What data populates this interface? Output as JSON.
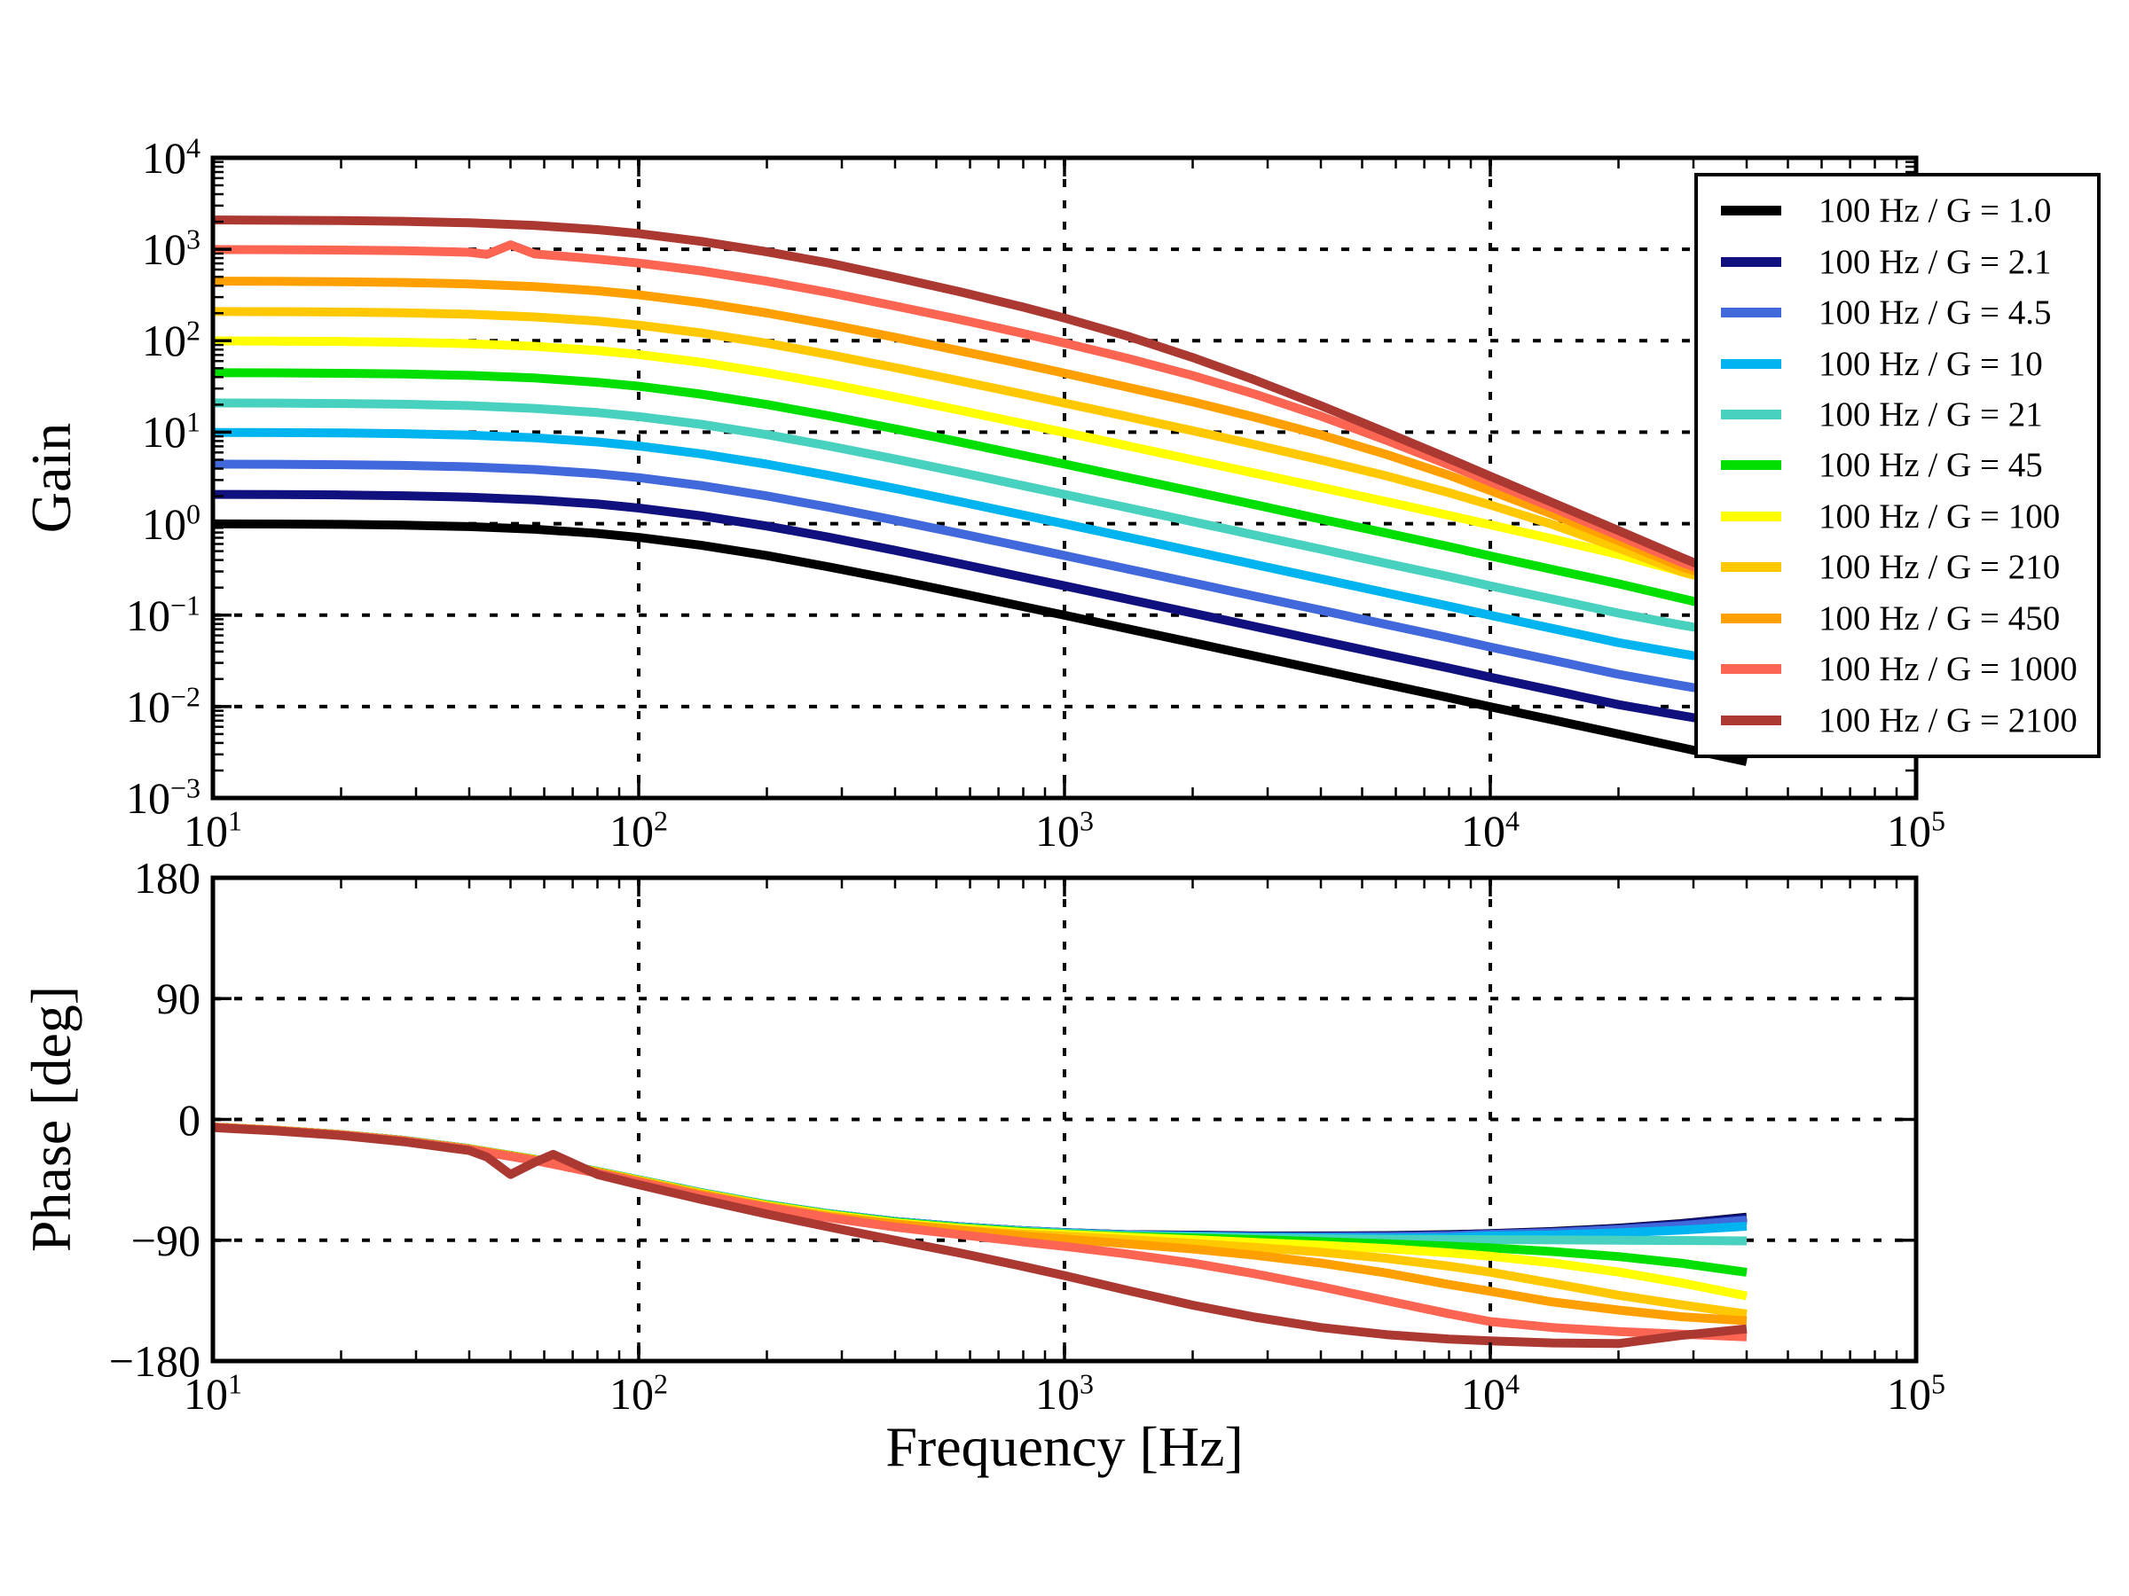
{
  "legend": {
    "position": "upper right"
  },
  "chart_data": [
    {
      "type": "line",
      "title": "",
      "ylabel": "Gain",
      "xlabel": "",
      "xscale": "log",
      "yscale": "log",
      "xlim": [
        10,
        100000
      ],
      "ylim": [
        0.001,
        10000
      ],
      "x_tick_exponents": [
        1,
        2,
        3,
        4,
        5
      ],
      "y_tick_exponents": [
        4,
        3,
        2,
        1,
        0,
        -1,
        -2,
        -3
      ],
      "x_gridline_exponents": [
        2,
        3,
        4
      ],
      "y_gridline_exponents": [
        3,
        2,
        1,
        0,
        -1,
        -2
      ],
      "grid_style": "dotted",
      "freqs_hz": [
        10,
        14,
        20,
        28,
        40,
        57,
        80,
        100,
        140,
        200,
        280,
        400,
        570,
        800,
        1000,
        1400,
        2000,
        2800,
        4000,
        5700,
        8000,
        10000,
        14000,
        20000,
        28000,
        40000
      ],
      "series": [
        {
          "name": "100 Hz / G = 1.0",
          "color": "#000000",
          "values": [
            0.995,
            0.99,
            0.981,
            0.963,
            0.928,
            0.869,
            0.781,
            0.707,
            0.581,
            0.447,
            0.336,
            0.2425,
            0.1728,
            0.124,
            0.0995,
            0.0713,
            0.05,
            0.0357,
            0.025,
            0.01754,
            0.0125,
            0.00995,
            0.00714,
            0.005,
            0.00357,
            0.0025
          ]
        },
        {
          "name": "100 Hz / G = 2.1",
          "color": "#10107E",
          "values": [
            2.09,
            2.08,
            2.06,
            2.02,
            1.95,
            1.82,
            1.64,
            1.48,
            1.22,
            0.94,
            0.71,
            0.51,
            0.363,
            0.26,
            0.209,
            0.15,
            0.105,
            0.075,
            0.0525,
            0.0368,
            0.0263,
            0.0209,
            0.015,
            0.0105,
            0.008,
            0.006
          ]
        },
        {
          "name": "100 Hz / G = 4.5",
          "color": "#4169DC",
          "values": [
            4.48,
            4.46,
            4.41,
            4.33,
            4.18,
            3.91,
            3.51,
            3.18,
            2.61,
            2.01,
            1.51,
            1.09,
            0.778,
            0.558,
            0.448,
            0.321,
            0.225,
            0.161,
            0.113,
            0.0789,
            0.0563,
            0.0448,
            0.0321,
            0.0225,
            0.017,
            0.013
          ]
        },
        {
          "name": "100 Hz / G = 10",
          "color": "#00B4F0",
          "values": [
            9.95,
            9.9,
            9.81,
            9.63,
            9.28,
            8.69,
            7.81,
            7.07,
            5.81,
            4.47,
            3.36,
            2.43,
            1.73,
            1.24,
            0.995,
            0.713,
            0.5,
            0.357,
            0.25,
            0.175,
            0.125,
            0.0995,
            0.0714,
            0.05,
            0.038,
            0.029
          ]
        },
        {
          "name": "100 Hz / G = 21",
          "color": "#48D1BE",
          "values": [
            20.9,
            20.8,
            20.6,
            20.2,
            19.5,
            18.2,
            16.4,
            14.8,
            12.2,
            9.39,
            7.06,
            5.09,
            3.63,
            2.6,
            2.09,
            1.5,
            1.05,
            0.75,
            0.525,
            0.368,
            0.263,
            0.209,
            0.15,
            0.105,
            0.078,
            0.059
          ]
        },
        {
          "name": "100 Hz / G = 45",
          "color": "#00DF00",
          "values": [
            44.8,
            44.6,
            44.1,
            43.3,
            41.8,
            39.1,
            35.1,
            31.8,
            26.1,
            20.1,
            15.1,
            10.9,
            7.78,
            5.58,
            4.48,
            3.21,
            2.25,
            1.61,
            1.12,
            0.789,
            0.56,
            0.443,
            0.316,
            0.22,
            0.153,
            0.103
          ]
        },
        {
          "name": "100 Hz / G = 100",
          "color": "#FFFF00",
          "values": [
            99.5,
            99,
            98.1,
            96.3,
            92.8,
            86.9,
            78.1,
            70.7,
            58.1,
            44.7,
            33.6,
            24.3,
            17.3,
            12.4,
            9.95,
            7.12,
            4.99,
            3.56,
            2.49,
            1.74,
            1.23,
            0.97,
            0.68,
            0.46,
            0.3,
            0.19
          ]
        },
        {
          "name": "100 Hz / G = 210",
          "color": "#FFC800",
          "values": [
            209,
            208,
            206,
            202,
            195,
            182,
            164,
            148,
            122,
            93.9,
            70.6,
            50.8,
            36.2,
            26,
            20.8,
            14.9,
            10.4,
            7.3,
            4.98,
            3.33,
            2.18,
            1.6,
            0.98,
            0.54,
            0.3,
            0.19
          ]
        },
        {
          "name": "100 Hz / G = 450",
          "color": "#FFA000",
          "values": [
            448,
            446,
            441,
            433,
            418,
            391,
            351,
            318,
            261,
            201,
            151,
            109,
            77.4,
            55.5,
            44.2,
            31.2,
            21.4,
            14.6,
            9.36,
            5.72,
            3.38,
            2.3,
            1.27,
            0.65,
            0.34,
            0.2
          ]
        },
        {
          "name": "100 Hz / G = 1000",
          "color": "#FB6552",
          "freqs_hz": [
            10,
            14,
            20,
            28,
            40,
            44,
            50,
            57,
            80,
            100,
            140,
            200,
            280,
            400,
            570,
            800,
            1000,
            1400,
            2000,
            2800,
            4000,
            5700,
            8000,
            10000,
            14000,
            20000,
            28000,
            40000
          ],
          "values": [
            995,
            990,
            981,
            963,
            928,
            880,
            1120,
            890,
            781,
            707,
            581,
            447,
            336,
            240,
            170,
            120,
            94.4,
            64.6,
            41.6,
            26.1,
            15,
            8.17,
            4.39,
            2.86,
            1.5,
            0.74,
            0.38,
            0.21
          ]
        },
        {
          "name": "100 Hz / G = 2100",
          "color": "#AC3832",
          "values": [
            2090,
            2079,
            2060,
            2022,
            1949,
            1825,
            1640,
            1485,
            1220,
            939,
            706,
            494,
            342,
            233,
            177,
            113,
            65.6,
            37.2,
            19.5,
            9.94,
            5.15,
            3.3,
            1.7,
            0.84,
            0.43,
            0.22
          ]
        }
      ]
    },
    {
      "type": "line",
      "title": "",
      "ylabel": "Phase [deg]",
      "xlabel": "Frequency [Hz]",
      "xscale": "log",
      "yscale": "linear",
      "xlim": [
        10,
        100000
      ],
      "ylim": [
        -180,
        180
      ],
      "x_tick_exponents": [
        1,
        2,
        3,
        4,
        5
      ],
      "y_ticks": [
        180,
        90,
        0,
        -90,
        -180
      ],
      "x_gridline_exponents": [
        2,
        3,
        4
      ],
      "y_gridlines": [
        90,
        0,
        -90
      ],
      "grid_style": "dotted",
      "freqs_hz": [
        10,
        14,
        20,
        28,
        40,
        57,
        80,
        100,
        140,
        200,
        280,
        400,
        570,
        800,
        1000,
        1400,
        2000,
        2800,
        4000,
        5700,
        8000,
        10000,
        14000,
        20000,
        28000,
        40000
      ],
      "series": [
        {
          "name": "100 Hz / G = 1.0",
          "color": "#000000",
          "values": [
            -5.7,
            -8,
            -11.3,
            -15.6,
            -21.8,
            -29.7,
            -38.7,
            -45,
            -54.5,
            -63.4,
            -70.3,
            -76,
            -80,
            -82.9,
            -84.3,
            -85.9,
            -86.2,
            -86.8,
            -86.8,
            -86.5,
            -85.8,
            -85,
            -83.5,
            -81,
            -77.6,
            -72.8
          ]
        },
        {
          "name": "100 Hz / G = 2.1",
          "color": "#10107E",
          "values": [
            -5.7,
            -8,
            -11.3,
            -15.6,
            -21.8,
            -29.7,
            -38.7,
            -45,
            -54.5,
            -63.4,
            -70.3,
            -76,
            -80,
            -82.9,
            -84.3,
            -85.9,
            -86.3,
            -86.9,
            -87,
            -86.8,
            -86,
            -85.2,
            -83.8,
            -81.3,
            -77.9,
            -73.2
          ]
        },
        {
          "name": "100 Hz / G = 4.5",
          "color": "#4169DC",
          "values": [
            -5.7,
            -8,
            -11.3,
            -15.6,
            -21.8,
            -29.7,
            -38.7,
            -45,
            -54.5,
            -63.4,
            -70.3,
            -76,
            -80,
            -82.9,
            -84.4,
            -86,
            -86.7,
            -87.3,
            -87.5,
            -87.3,
            -86.7,
            -85.6,
            -84.3,
            -82.1,
            -79.2,
            -75
          ]
        },
        {
          "name": "100 Hz / G = 10",
          "color": "#00B4F0",
          "values": [
            -5.7,
            -8,
            -11.3,
            -15.6,
            -21.8,
            -29.7,
            -38.7,
            -45,
            -54.5,
            -63.4,
            -70.3,
            -76.1,
            -80.1,
            -83,
            -84.5,
            -86.2,
            -87,
            -87.8,
            -88.2,
            -88.3,
            -88,
            -86.8,
            -86,
            -84.5,
            -82.5,
            -79.6
          ]
        },
        {
          "name": "100 Hz / G = 21",
          "color": "#48D1BE",
          "values": [
            -5.7,
            -8,
            -11.3,
            -15.6,
            -21.8,
            -29.7,
            -38.8,
            -45.1,
            -54.6,
            -63.5,
            -70.4,
            -76.2,
            -80.3,
            -83.2,
            -84.8,
            -86.5,
            -87.5,
            -88.3,
            -88.9,
            -89.3,
            -89.5,
            -89.6,
            -89.8,
            -90,
            -90.2,
            -90.5
          ]
        },
        {
          "name": "100 Hz / G = 45",
          "color": "#00DF00",
          "values": [
            -5.7,
            -8,
            -11.3,
            -15.7,
            -21.9,
            -29.8,
            -38.9,
            -45.2,
            -54.8,
            -63.7,
            -70.7,
            -76.5,
            -80.7,
            -83.7,
            -85.4,
            -87.2,
            -88.4,
            -89.5,
            -91.1,
            -92.6,
            -94.4,
            -95.7,
            -98.4,
            -102.2,
            -107.1,
            -113.9
          ]
        },
        {
          "name": "100 Hz / G = 100",
          "color": "#FFFF00",
          "values": [
            -5.7,
            -8,
            -11.3,
            -15.7,
            -21.9,
            -29.9,
            -39,
            -45.4,
            -55,
            -64,
            -71,
            -77,
            -81.2,
            -84.3,
            -85.6,
            -87.7,
            -89.6,
            -91.6,
            -93.7,
            -96.2,
            -99.4,
            -101.9,
            -106.9,
            -113.7,
            -121.7,
            -131.5
          ]
        },
        {
          "name": "100 Hz / G = 210",
          "color": "#FFC800",
          "values": [
            -5.7,
            -8,
            -11.4,
            -15.8,
            -22,
            -30,
            -39.2,
            -45.7,
            -55.4,
            -64.5,
            -71.6,
            -77.8,
            -82.2,
            -85.5,
            -86.9,
            -89.5,
            -92.3,
            -95.3,
            -98.9,
            -103.5,
            -109.3,
            -113.8,
            -122.1,
            -131,
            -138,
            -145
          ]
        },
        {
          "name": "100 Hz / G = 450",
          "color": "#FFA000",
          "values": [
            -5.7,
            -8.1,
            -11.4,
            -15.8,
            -22.1,
            -30.2,
            -39.5,
            -46,
            -55.9,
            -65.2,
            -72.5,
            -77.9,
            -82.7,
            -86.7,
            -89.1,
            -92.6,
            -96.6,
            -101.1,
            -107,
            -114.4,
            -123,
            -128,
            -136,
            -142,
            -147,
            -150
          ]
        },
        {
          "name": "100 Hz / G = 1000",
          "color": "#FB6552",
          "values": [
            -5.8,
            -8.1,
            -11.5,
            -16,
            -22.4,
            -30.6,
            -40.1,
            -46.7,
            -56.9,
            -65.5,
            -73.2,
            -80.2,
            -85.9,
            -91.2,
            -94.6,
            -100.2,
            -107.1,
            -115,
            -124.6,
            -135,
            -144.8,
            -150.6,
            -155,
            -158,
            -160,
            -162
          ]
        },
        {
          "name": "100 Hz / G = 2100",
          "color": "#AC3832",
          "freqs_hz": [
            10,
            14,
            20,
            28,
            40,
            44,
            50,
            57,
            63,
            80,
            100,
            140,
            200,
            280,
            400,
            570,
            800,
            1000,
            1400,
            2000,
            2800,
            4000,
            5700,
            8000,
            10000,
            14000,
            20000,
            28000,
            40000
          ],
          "values": [
            -6.1,
            -8.5,
            -12,
            -16.6,
            -23.2,
            -28,
            -41,
            -32,
            -26,
            -41,
            -48.6,
            -59.5,
            -70.5,
            -80.2,
            -90,
            -99.6,
            -109.5,
            -116.3,
            -127.2,
            -138.4,
            -147.3,
            -155,
            -160.3,
            -163.6,
            -165,
            -166.5,
            -167,
            -161,
            -156
          ]
        }
      ]
    }
  ]
}
